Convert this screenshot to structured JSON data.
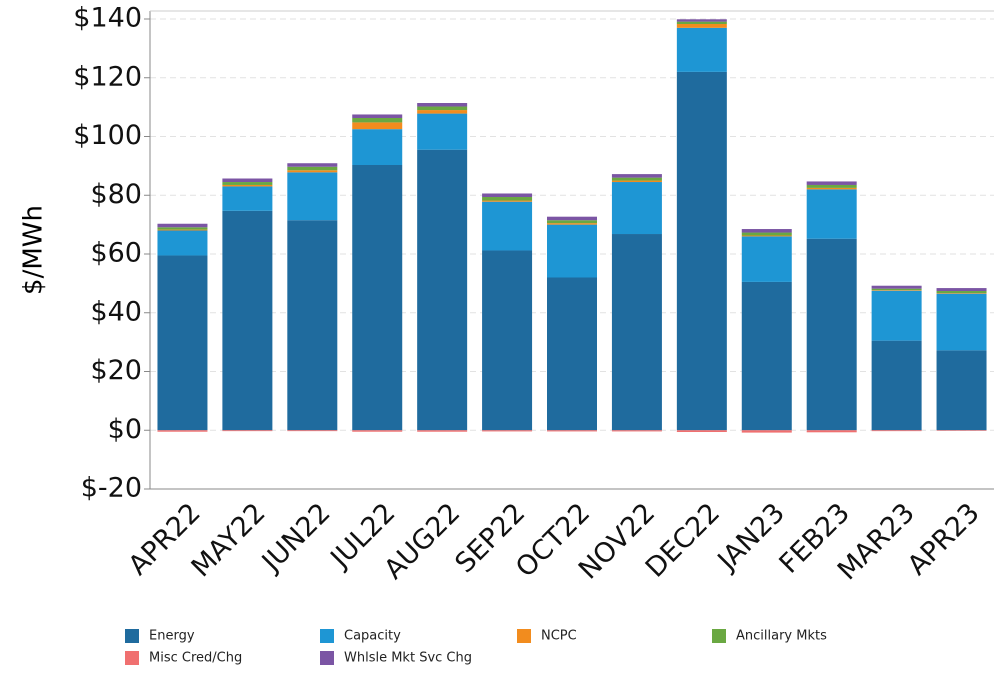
{
  "chart_data": {
    "type": "stacked_bar",
    "y_label": "$/MWh",
    "categories": [
      "APR22",
      "MAY22",
      "JUN22",
      "JUL22",
      "AUG22",
      "SEP22",
      "OCT22",
      "NOV22",
      "DEC22",
      "JAN23",
      "FEB23",
      "MAR23",
      "APR23"
    ],
    "series": [
      {
        "name": "Energy",
        "color": "#1f6b9e",
        "values": [
          59.5,
          74.7,
          71.5,
          90.3,
          95.5,
          61.2,
          52,
          66.8,
          122,
          50.5,
          65.2,
          30.5,
          27.2
        ]
      },
      {
        "name": "Capacity",
        "color": "#1e96d4",
        "values": [
          8.5,
          8.3,
          16.3,
          12.2,
          12.3,
          16.6,
          18,
          17.7,
          15,
          15.5,
          16.8,
          17,
          19.3
        ]
      },
      {
        "name": "NCPC",
        "color": "#f28c1e",
        "values": [
          0.3,
          0.5,
          0.7,
          2.3,
          1.2,
          0.4,
          0.5,
          0.5,
          1.3,
          0.3,
          0.5,
          0.2,
          0.2
        ]
      },
      {
        "name": "Ancillary Mkts",
        "color": "#6aa842",
        "values": [
          0.8,
          1.0,
          1.2,
          1.5,
          1.2,
          1.2,
          1.0,
          1.0,
          0.8,
          1.0,
          1.0,
          0.5,
          0.7
        ]
      },
      {
        "name": "Misc Cred/Chg",
        "color": "#f07070",
        "values": [
          -0.5,
          -0.3,
          -0.3,
          -0.5,
          -0.5,
          -0.4,
          -0.4,
          -0.4,
          -0.6,
          -0.8,
          -0.7,
          -0.3,
          -0.2
        ]
      },
      {
        "name": "Whlsle Mkt Svc Chg",
        "color": "#7b55a4",
        "values": [
          1.2,
          1.2,
          1.2,
          1.2,
          1.2,
          1.2,
          1.2,
          1.2,
          0.8,
          1.2,
          1.2,
          1.0,
          1.0
        ]
      }
    ],
    "ylim": [
      -20,
      140
    ],
    "yticks": [
      {
        "value": -20,
        "label": "$-20"
      },
      {
        "value": 0,
        "label": "$0"
      },
      {
        "value": 20,
        "label": "$20"
      },
      {
        "value": 40,
        "label": "$40"
      },
      {
        "value": 60,
        "label": "$60"
      },
      {
        "value": 80,
        "label": "$80"
      },
      {
        "value": 100,
        "label": "$100"
      },
      {
        "value": 120,
        "label": "$120"
      },
      {
        "value": 140,
        "label": "$140"
      }
    ],
    "grid": true
  }
}
